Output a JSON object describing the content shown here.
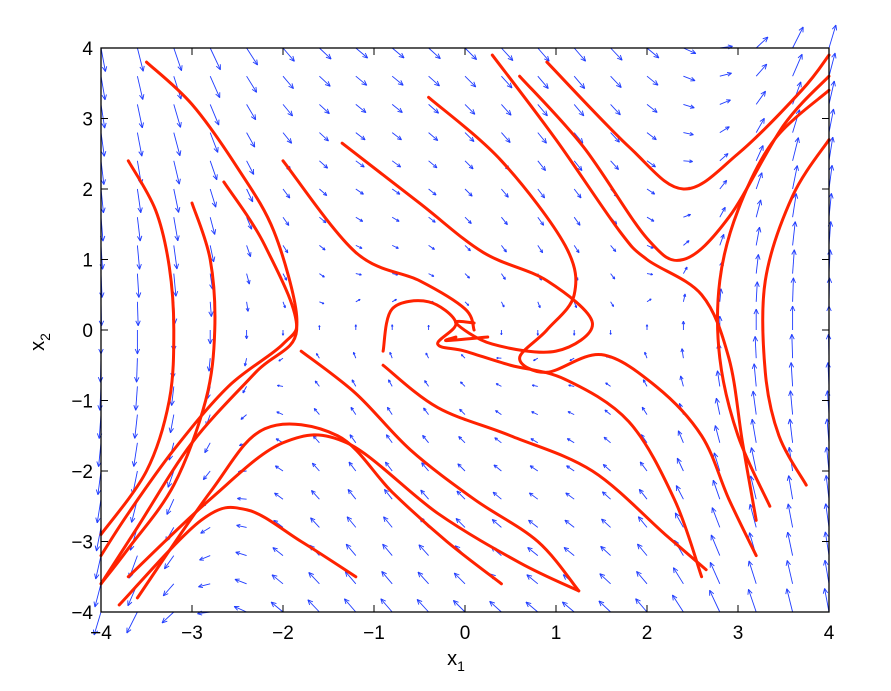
{
  "chart_data": {
    "type": "phase-portrait",
    "title": "",
    "xlabel": "x",
    "xlabel_subscript": "1",
    "ylabel": "x",
    "ylabel_subscript": "2",
    "xlim": [
      -4,
      4
    ],
    "ylim": [
      -4,
      4
    ],
    "xticks": [
      -4,
      -3,
      -2,
      -1,
      0,
      1,
      2,
      3,
      4
    ],
    "yticks": [
      -4,
      -3,
      -2,
      -1,
      0,
      1,
      2,
      3,
      4
    ],
    "grid": false,
    "colors": {
      "trajectory": "#ff2200",
      "vector_field": "#1f3cff",
      "axes": "#000000"
    },
    "vector_field": {
      "system": "x1' = x2, x2' = -x1 - x2 + x1^3 / 3 (approx.)",
      "grid_step": 0.4
    },
    "trajectories": [
      [
        [
          -3.5,
          3.8
        ],
        [
          -3.0,
          3.2
        ],
        [
          -2.5,
          2.3
        ],
        [
          -2.1,
          1.4
        ],
        [
          -1.85,
          0.2
        ],
        [
          -2.0,
          -0.2
        ],
        [
          -2.6,
          -0.8
        ],
        [
          -3.2,
          -1.7
        ],
        [
          -3.7,
          -2.6
        ],
        [
          -4.0,
          -3.2
        ]
      ],
      [
        [
          -3.7,
          2.4
        ],
        [
          -3.4,
          1.7
        ],
        [
          -3.25,
          0.9
        ],
        [
          -3.2,
          0
        ],
        [
          -3.25,
          -1.0
        ],
        [
          -3.5,
          -2.0
        ],
        [
          -4.0,
          -2.9
        ]
      ],
      [
        [
          -3.0,
          1.8
        ],
        [
          -2.8,
          1.0
        ],
        [
          -2.75,
          0
        ],
        [
          -2.85,
          -1.0
        ],
        [
          -3.2,
          -2.2
        ],
        [
          -3.7,
          -3.1
        ],
        [
          -4.0,
          -3.6
        ]
      ],
      [
        [
          -2.65,
          2.1
        ],
        [
          -2.2,
          1.2
        ],
        [
          -1.85,
          0.0
        ],
        [
          -2.3,
          -0.6
        ],
        [
          -3.0,
          -1.6
        ],
        [
          -3.6,
          -2.8
        ],
        [
          -4.0,
          -3.6
        ]
      ],
      [
        [
          -2.0,
          2.4
        ],
        [
          -1.2,
          1.1
        ],
        [
          -0.5,
          0.7
        ],
        [
          0.0,
          0.3
        ],
        [
          0.1,
          0.0
        ]
      ],
      [
        [
          -1.35,
          2.65
        ],
        [
          -0.5,
          1.8
        ],
        [
          0.2,
          1.1
        ],
        [
          0.9,
          0.7
        ],
        [
          1.4,
          0.1
        ],
        [
          1.0,
          -0.3
        ],
        [
          0.3,
          -0.2
        ],
        [
          -0.1,
          0.1
        ],
        [
          0.1,
          0.1
        ]
      ],
      [
        [
          -0.4,
          3.3
        ],
        [
          0.4,
          2.4
        ],
        [
          1.1,
          1.2
        ],
        [
          1.2,
          0.5
        ],
        [
          0.9,
          0.0
        ],
        [
          0.6,
          -0.4
        ],
        [
          0.9,
          -0.6
        ],
        [
          1.5,
          -0.35
        ],
        [
          2.1,
          -0.8
        ],
        [
          2.6,
          -1.5
        ],
        [
          2.9,
          -2.4
        ],
        [
          3.2,
          -3.2
        ]
      ],
      [
        [
          -0.9,
          -0.3
        ],
        [
          -0.8,
          0.3
        ],
        [
          -0.4,
          0.4
        ],
        [
          -0.1,
          0.1
        ],
        [
          -0.3,
          -0.2
        ],
        [
          0.0,
          -0.3
        ],
        [
          0.5,
          -0.5
        ],
        [
          1.1,
          -0.7
        ],
        [
          1.8,
          -1.3
        ],
        [
          2.3,
          -2.4
        ],
        [
          2.6,
          -3.5
        ]
      ],
      [
        [
          -0.9,
          -0.5
        ],
        [
          -0.3,
          -1.1
        ],
        [
          0.5,
          -1.5
        ],
        [
          1.4,
          -2.0
        ],
        [
          2.2,
          -2.9
        ],
        [
          2.65,
          -3.4
        ]
      ],
      [
        [
          0.25,
          -0.1
        ],
        [
          -0.2,
          -0.15
        ],
        [
          -0.1,
          -0.1
        ]
      ],
      [
        [
          -1.8,
          -0.3
        ],
        [
          -1.2,
          -0.9
        ],
        [
          -0.6,
          -1.7
        ],
        [
          0.1,
          -2.4
        ],
        [
          0.8,
          -3.0
        ],
        [
          1.25,
          -3.7
        ]
      ],
      [
        [
          -3.6,
          -3.8
        ],
        [
          -2.8,
          -2.3
        ],
        [
          -2.2,
          -1.4
        ],
        [
          -1.4,
          -1.5
        ],
        [
          -0.8,
          -2.3
        ],
        [
          -0.2,
          -3.0
        ],
        [
          0.4,
          -3.6
        ]
      ],
      [
        [
          -3.7,
          -3.5
        ],
        [
          -2.8,
          -2.4
        ],
        [
          -2.0,
          -1.6
        ],
        [
          -1.3,
          -1.6
        ],
        [
          -0.3,
          -2.6
        ],
        [
          0.6,
          -3.3
        ],
        [
          1.25,
          -3.7
        ]
      ],
      [
        [
          -3.8,
          -3.9
        ],
        [
          -2.9,
          -2.7
        ],
        [
          -2.4,
          -2.55
        ],
        [
          -1.8,
          -3.0
        ],
        [
          -1.2,
          -3.5
        ]
      ],
      [
        [
          0.9,
          3.8
        ],
        [
          1.8,
          2.6
        ],
        [
          2.4,
          2.0
        ],
        [
          3.0,
          2.5
        ],
        [
          3.7,
          3.4
        ],
        [
          4.0,
          3.9
        ]
      ],
      [
        [
          0.6,
          3.6
        ],
        [
          1.3,
          2.6
        ],
        [
          2.0,
          1.3
        ],
        [
          2.4,
          1.0
        ],
        [
          2.9,
          1.6
        ],
        [
          3.5,
          2.9
        ],
        [
          4.0,
          3.6
        ]
      ],
      [
        [
          0.3,
          3.9
        ],
        [
          1.0,
          2.7
        ],
        [
          1.7,
          1.4
        ],
        [
          2.0,
          1.0
        ],
        [
          2.6,
          0.5
        ],
        [
          2.9,
          -0.4
        ],
        [
          3.05,
          -1.6
        ],
        [
          3.2,
          -2.7
        ]
      ],
      [
        [
          4.0,
          3.4
        ],
        [
          3.4,
          2.7
        ],
        [
          3.0,
          1.7
        ],
        [
          2.8,
          0.7
        ],
        [
          2.8,
          -0.4
        ],
        [
          3.0,
          -1.5
        ],
        [
          3.35,
          -2.5
        ]
      ],
      [
        [
          4.0,
          2.7
        ],
        [
          3.6,
          1.9
        ],
        [
          3.3,
          0.7
        ],
        [
          3.3,
          -0.6
        ],
        [
          3.45,
          -1.5
        ],
        [
          3.75,
          -2.2
        ]
      ]
    ]
  }
}
